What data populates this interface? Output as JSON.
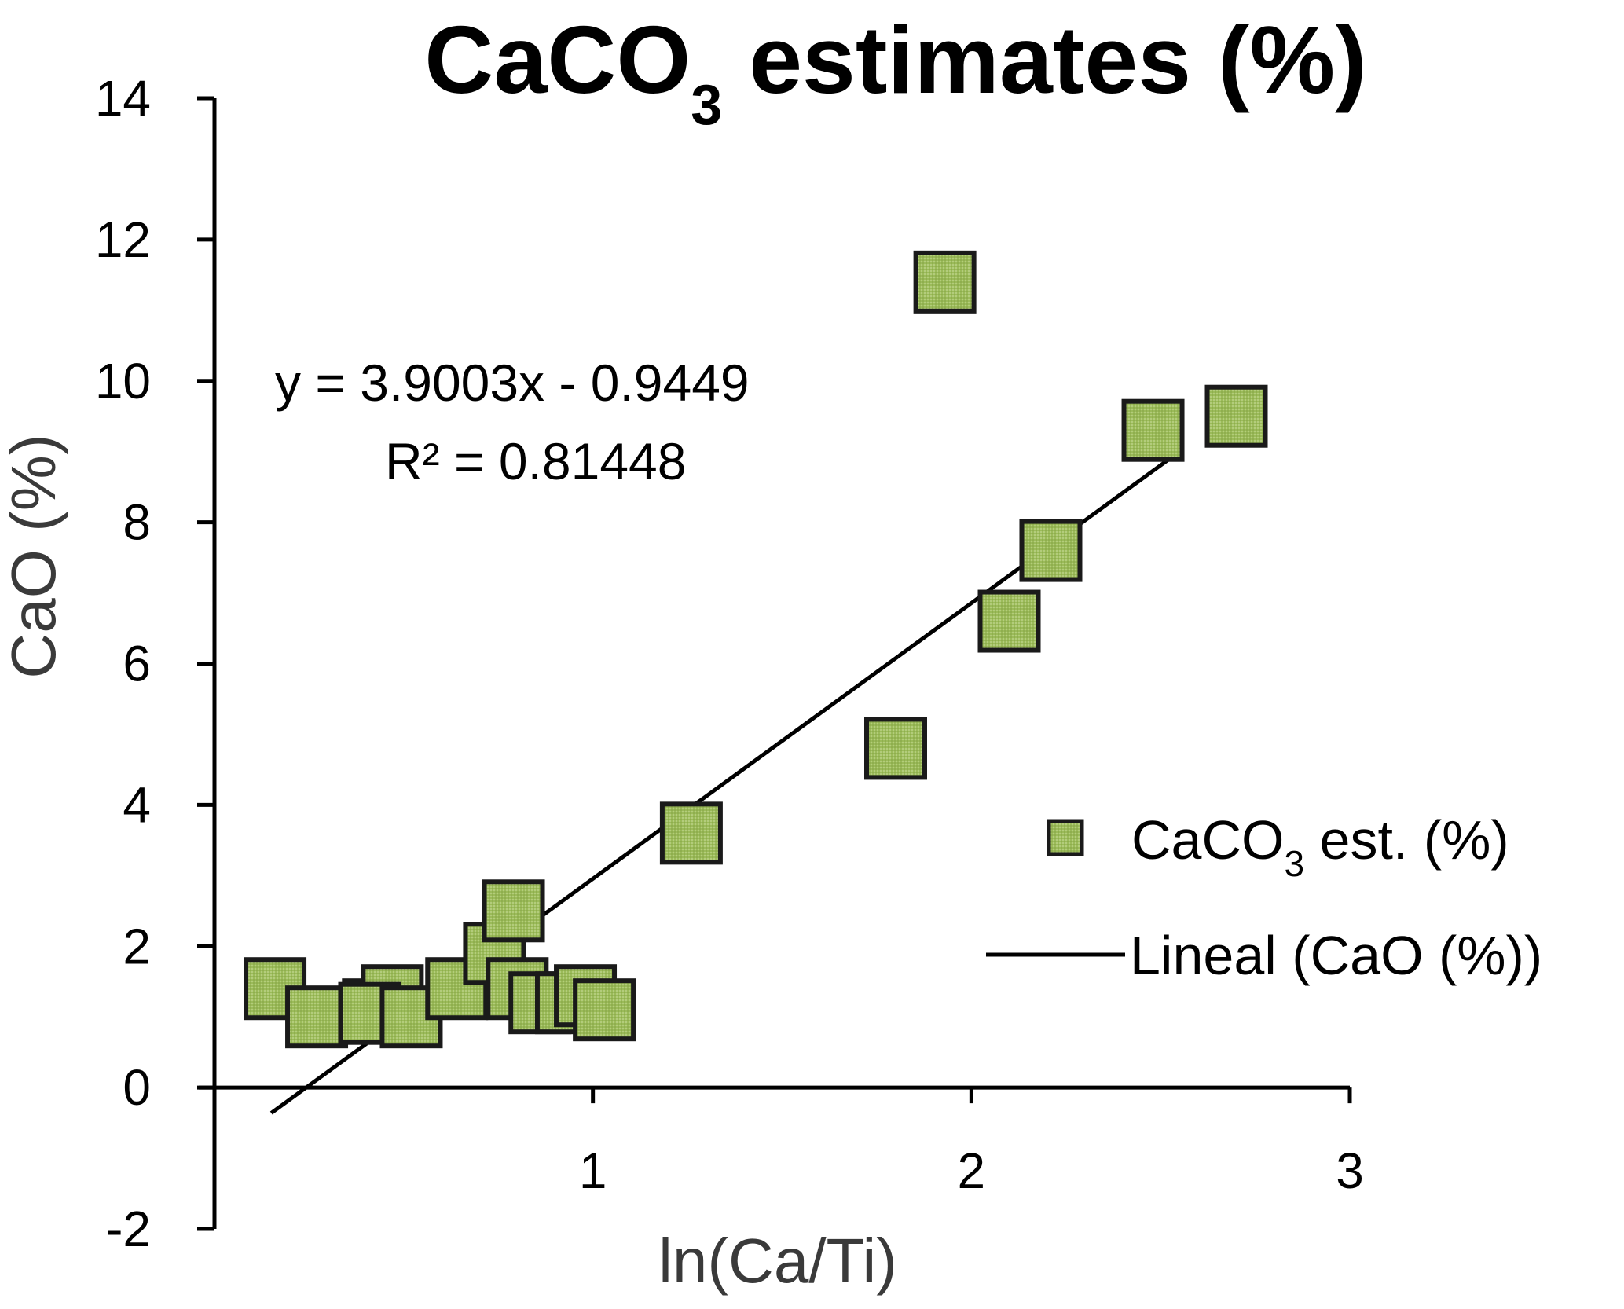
{
  "chart_data": {
    "type": "scatter",
    "title": "CaCO",
    "title_sub": "3",
    "title_suffix": " estimates (%)",
    "xlabel": "ln(Ca/Ti)",
    "ylabel": "CaO (%)",
    "xlim": [
      0,
      3
    ],
    "ylim": [
      -2,
      14
    ],
    "xticks": [
      1,
      2,
      3
    ],
    "yticks": [
      -2,
      0,
      2,
      4,
      6,
      8,
      10,
      12,
      14
    ],
    "series": [
      {
        "name": "CaCO3 est. (%)",
        "marker": "square",
        "color": "#9bbb59",
        "points": [
          [
            0.16,
            1.4
          ],
          [
            0.27,
            1.0
          ],
          [
            0.42,
            1.1
          ],
          [
            0.47,
            1.3
          ],
          [
            0.41,
            1.05
          ],
          [
            0.52,
            1.0
          ],
          [
            0.64,
            1.4
          ],
          [
            0.74,
            1.9
          ],
          [
            0.79,
            2.5
          ],
          [
            0.8,
            1.4
          ],
          [
            0.86,
            1.2
          ],
          [
            0.93,
            1.2
          ],
          [
            0.98,
            1.3
          ],
          [
            1.03,
            1.1
          ],
          [
            1.26,
            3.6
          ],
          [
            1.8,
            4.8
          ],
          [
            1.93,
            11.4
          ],
          [
            2.1,
            6.6
          ],
          [
            2.21,
            7.6
          ],
          [
            2.48,
            9.3
          ],
          [
            2.7,
            9.5
          ]
        ]
      }
    ],
    "trendline": {
      "name": "Lineal (CaO (%))",
      "slope": 3.9003,
      "intercept": -0.9449,
      "x_range": [
        0.15,
        2.55
      ],
      "color": "#000000"
    },
    "equation_line1": "y = 3.9003x - 0.9449",
    "equation_line2": "R² = 0.81448",
    "legend": {
      "position": "right",
      "marker_label": "CaCO",
      "marker_label_sub": "3",
      "marker_label_suffix": " est. (%)",
      "line_label": "Lineal (CaO (%))"
    }
  }
}
